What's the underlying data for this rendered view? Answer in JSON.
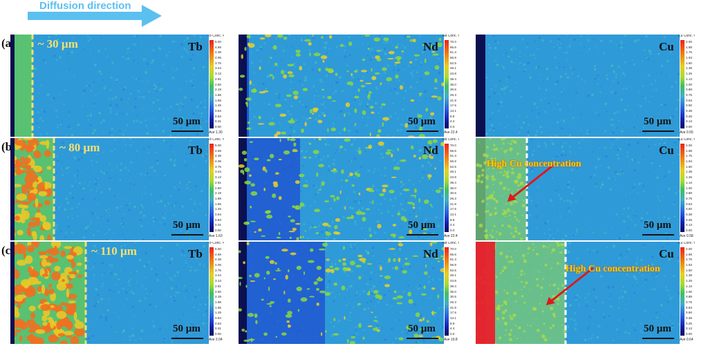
{
  "header": {
    "label": "Diffusion direction",
    "arrow_color": "#5bc0ef"
  },
  "rows": [
    {
      "label": "(a)",
      "width_label": "~ 30 µm",
      "panels": [
        {
          "element": "Tb",
          "colorbar_title": "Tb Conc. %",
          "ticks": [
            "5.00",
            "4.69",
            "4.38",
            "4.06",
            "3.75",
            "3.44",
            "3.13",
            "2.81",
            "2.50",
            "2.19",
            "1.88",
            "1.56",
            "1.25",
            "0.94",
            "0.63",
            "0.31",
            "0.00"
          ],
          "avg": "Ave 1.30",
          "scale": "50 µm",
          "front_fraction": 0.11,
          "fill_level": 0.0
        },
        {
          "element": "Nd",
          "colorbar_title": "Nd Conc. %",
          "ticks": [
            "70.0",
            "65.6",
            "61.3",
            "56.9",
            "52.5",
            "48.1",
            "43.8",
            "39.4",
            "35.0",
            "30.6",
            "26.3",
            "21.9",
            "17.5",
            "13.1",
            "8.8",
            "4.4",
            "0.0"
          ],
          "avg": "Ave 22.4",
          "scale": "50 µm",
          "front_fraction": 0.0,
          "fill_level": 0.0
        },
        {
          "element": "Cu",
          "colorbar_title": "Cu Conc. %",
          "ticks": [
            "2.00",
            "1.88",
            "1.75",
            "1.63",
            "1.50",
            "1.38",
            "1.25",
            "1.13",
            "1.00",
            "0.88",
            "0.75",
            "0.63",
            "0.50",
            "0.38",
            "0.25",
            "0.13",
            "0.00"
          ],
          "avg": "Ave 0.55",
          "scale": "50 µm",
          "front_fraction": 0.0,
          "fill_level": 0.0
        }
      ]
    },
    {
      "label": "(b)",
      "width_label": "~ 80 µm",
      "panels": [
        {
          "element": "Tb",
          "colorbar_title": "Tb Conc. %",
          "ticks": [
            "5.00",
            "4.69",
            "4.38",
            "4.06",
            "3.75",
            "3.44",
            "3.13",
            "2.81",
            "2.50",
            "2.19",
            "1.88",
            "1.56",
            "1.25",
            "0.94",
            "0.63",
            "0.31",
            "0.00"
          ],
          "avg": "Ave 1.63",
          "scale": "50 µm",
          "front_fraction": 0.22,
          "fill_level": 0.5
        },
        {
          "element": "Nd",
          "colorbar_title": "Nd Conc. %",
          "ticks": [
            "70.0",
            "65.6",
            "61.3",
            "56.9",
            "52.5",
            "48.1",
            "43.8",
            "39.4",
            "35.0",
            "30.6",
            "26.3",
            "21.9",
            "17.5",
            "13.1",
            "8.8",
            "4.4",
            "0.0"
          ],
          "avg": "Ave 22.4",
          "scale": "50 µm",
          "front_fraction": 0.0,
          "fill_level": 0.0
        },
        {
          "element": "Cu",
          "colorbar_title": "Cu Conc. %",
          "ticks": [
            "2.00",
            "1.88",
            "1.75",
            "1.63",
            "1.50",
            "1.38",
            "1.25",
            "1.13",
            "1.00",
            "0.88",
            "0.75",
            "0.63",
            "0.50",
            "0.38",
            "0.25",
            "0.13",
            "0.00"
          ],
          "avg": "Ave 0.58",
          "scale": "50 µm",
          "front_fraction": 0.25,
          "fill_level": 0.3,
          "annotation": "High Cu concentration"
        }
      ]
    },
    {
      "label": "(c)",
      "width_label": "~ 110 µm",
      "panels": [
        {
          "element": "Tb",
          "colorbar_title": "Tb Conc. %",
          "ticks": [
            "5.00",
            "4.69",
            "4.38",
            "4.06",
            "3.75",
            "3.44",
            "3.13",
            "2.81",
            "2.50",
            "2.19",
            "1.88",
            "1.56",
            "1.25",
            "0.94",
            "0.63",
            "0.31",
            "0.00"
          ],
          "avg": "Ave 2.04",
          "scale": "50 µm",
          "front_fraction": 0.38,
          "fill_level": 0.8
        },
        {
          "element": "Nd",
          "colorbar_title": "Nd Conc. %",
          "ticks": [
            "70.0",
            "65.6",
            "61.3",
            "56.9",
            "52.5",
            "48.1",
            "43.8",
            "39.4",
            "35.0",
            "30.6",
            "26.3",
            "21.9",
            "17.5",
            "13.1",
            "8.8",
            "4.4",
            "0.0"
          ],
          "avg": "Ave 19.8",
          "scale": "50 µm",
          "front_fraction": 0.0,
          "fill_level": 0.0
        },
        {
          "element": "Cu",
          "colorbar_title": "Cu Conc. %",
          "ticks": [
            "2.00",
            "1.88",
            "1.75",
            "1.63",
            "1.50",
            "1.38",
            "1.25",
            "1.13",
            "1.00",
            "0.88",
            "0.75",
            "0.63",
            "0.50",
            "0.38",
            "0.25",
            "0.13",
            "0.00"
          ],
          "avg": "Ave 0.64",
          "scale": "50 µm",
          "front_fraction": 0.44,
          "fill_level": 0.5,
          "annotation": "High Cu concentration"
        }
      ]
    }
  ]
}
